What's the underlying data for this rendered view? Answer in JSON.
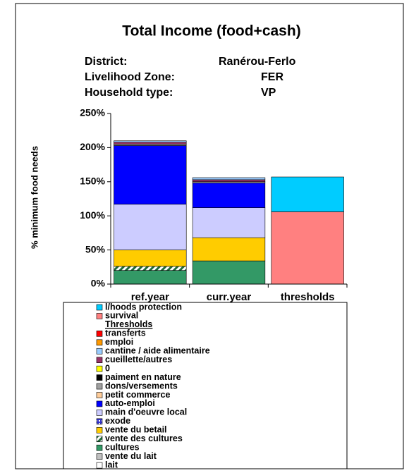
{
  "chart_data": {
    "type": "bar",
    "stacked": true,
    "title": "Total Income (food+cash)",
    "subtitle_rows": [
      [
        "District:",
        "Ranérou-Ferlo"
      ],
      [
        "Livelihood Zone:",
        "FER"
      ],
      [
        "Household type:",
        "VP"
      ]
    ],
    "y_label": "% minimum food needs",
    "categories": [
      "ref.year",
      "curr.year",
      "thresholds"
    ],
    "ylim": [
      0,
      250
    ],
    "yticks": [
      {
        "value": 0,
        "label": "0%"
      },
      {
        "value": 50,
        "label": "50%"
      },
      {
        "value": 100,
        "label": "100%"
      },
      {
        "value": 150,
        "label": "150%"
      },
      {
        "value": 200,
        "label": "200%"
      },
      {
        "value": 250,
        "label": "250%"
      }
    ],
    "series": [
      {
        "name": "lait",
        "color": "#ffffff",
        "values": [
          0,
          0,
          0
        ]
      },
      {
        "name": "vente du lait",
        "color": "#c0c0c0",
        "values": [
          0,
          0,
          0
        ]
      },
      {
        "name": "cultures",
        "color": "#339966",
        "values": [
          20,
          34,
          0
        ]
      },
      {
        "name": "vente des cultures",
        "color": "#1f6b3a",
        "pattern": "hatch",
        "values": [
          6,
          0,
          0
        ]
      },
      {
        "name": "vente du betail",
        "color": "#ffcc00",
        "values": [
          24,
          34,
          0
        ]
      },
      {
        "name": "exode",
        "color": "#3333cc",
        "pattern": "check",
        "values": [
          0,
          0,
          0
        ]
      },
      {
        "name": "main d'oeuvre local",
        "color": "#ccccff",
        "values": [
          67,
          44,
          0
        ]
      },
      {
        "name": "auto-emploi",
        "color": "#0000ff",
        "values": [
          86,
          36,
          0
        ]
      },
      {
        "name": "petit commerce",
        "color": "#ffcc99",
        "values": [
          0,
          0,
          0
        ]
      },
      {
        "name": "dons/versements",
        "color": "#a0a0a0",
        "values": [
          2,
          2,
          0
        ]
      },
      {
        "name": "paiment en nature",
        "color": "#000000",
        "values": [
          0,
          0,
          0
        ]
      },
      {
        "name": "0",
        "color": "#ffff00",
        "values": [
          0,
          0,
          0
        ]
      },
      {
        "name": "cueillette/autres",
        "color": "#993366",
        "values": [
          3,
          3,
          0
        ]
      },
      {
        "name": "cantine / aide alimentaire",
        "color": "#99ccff",
        "values": [
          2,
          3,
          0
        ]
      },
      {
        "name": "emploi",
        "color": "#ff9900",
        "values": [
          0,
          0,
          0
        ]
      },
      {
        "name": "transferts",
        "color": "#ff0000",
        "values": [
          0,
          0,
          0
        ]
      }
    ],
    "threshold_heading": "Thresholds",
    "threshold_series": [
      {
        "name": "survival",
        "color": "#ff8080",
        "values": [
          0,
          0,
          106
        ]
      },
      {
        "name": "l/hoods protection",
        "color": "#00ccff",
        "values": [
          0,
          0,
          51
        ]
      }
    ]
  }
}
